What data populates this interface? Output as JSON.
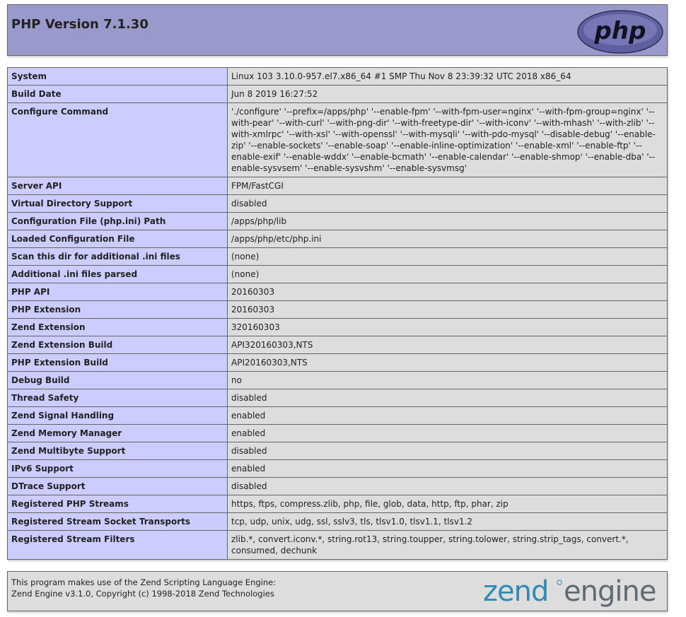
{
  "header": {
    "title": "PHP Version 7.1.30",
    "logo_text": "php"
  },
  "info_rows": [
    {
      "label": "System",
      "value": "Linux 103 3.10.0-957.el7.x86_64 #1 SMP Thu Nov 8 23:39:32 UTC 2018 x86_64"
    },
    {
      "label": "Build Date",
      "value": "Jun 8 2019 16:27:52"
    },
    {
      "label": "Configure Command",
      "value": "'./configure' '--prefix=/apps/php' '--enable-fpm' '--with-fpm-user=nginx' '--with-fpm-group=nginx' '--with-pear' '--with-curl' '--with-png-dir' '--with-freetype-dir' '--with-iconv' '--with-mhash' '--with-zlib' '--with-xmlrpc' '--with-xsl' '--with-openssl' '--with-mysqli' '--with-pdo-mysql' '--disable-debug' '--enable-zip' '--enable-sockets' '--enable-soap' '--enable-inline-optimization' '--enable-xml' '--enable-ftp' '--enable-exif' '--enable-wddx' '--enable-bcmath' '--enable-calendar' '--enable-shmop' '--enable-dba' '--enable-sysvsem' '--enable-sysvshm' '--enable-sysvmsg'"
    },
    {
      "label": "Server API",
      "value": "FPM/FastCGI"
    },
    {
      "label": "Virtual Directory Support",
      "value": "disabled"
    },
    {
      "label": "Configuration File (php.ini) Path",
      "value": "/apps/php/lib"
    },
    {
      "label": "Loaded Configuration File",
      "value": "/apps/php/etc/php.ini"
    },
    {
      "label": "Scan this dir for additional .ini files",
      "value": "(none)"
    },
    {
      "label": "Additional .ini files parsed",
      "value": "(none)"
    },
    {
      "label": "PHP API",
      "value": "20160303"
    },
    {
      "label": "PHP Extension",
      "value": "20160303"
    },
    {
      "label": "Zend Extension",
      "value": "320160303"
    },
    {
      "label": "Zend Extension Build",
      "value": "API320160303,NTS"
    },
    {
      "label": "PHP Extension Build",
      "value": "API20160303,NTS"
    },
    {
      "label": "Debug Build",
      "value": "no"
    },
    {
      "label": "Thread Safety",
      "value": "disabled"
    },
    {
      "label": "Zend Signal Handling",
      "value": "enabled"
    },
    {
      "label": "Zend Memory Manager",
      "value": "enabled"
    },
    {
      "label": "Zend Multibyte Support",
      "value": "disabled"
    },
    {
      "label": "IPv6 Support",
      "value": "enabled"
    },
    {
      "label": "DTrace Support",
      "value": "disabled"
    },
    {
      "label": "Registered PHP Streams",
      "value": "https, ftps, compress.zlib, php, file, glob, data, http, ftp, phar, zip"
    },
    {
      "label": "Registered Stream Socket Transports",
      "value": "tcp, udp, unix, udg, ssl, sslv3, tls, tlsv1.0, tlsv1.1, tlsv1.2"
    },
    {
      "label": "Registered Stream Filters",
      "value": "zlib.*, convert.iconv.*, string.rot13, string.toupper, string.tolower, string.strip_tags, convert.*, consumed, dechunk"
    }
  ],
  "footer": {
    "line1": "This program makes use of the Zend Scripting Language Engine:",
    "line2": "Zend Engine v3.1.0, Copyright (c) 1998-2018 Zend Technologies",
    "logo_word1": "zend",
    "logo_word2": "engine"
  },
  "colors": {
    "header_bg": "#9999cc",
    "label_bg": "#ccccff",
    "value_bg": "#dddddd",
    "border": "#666666",
    "zend_blue": "#2e8bb4",
    "zend_gray": "#5f6b73"
  }
}
